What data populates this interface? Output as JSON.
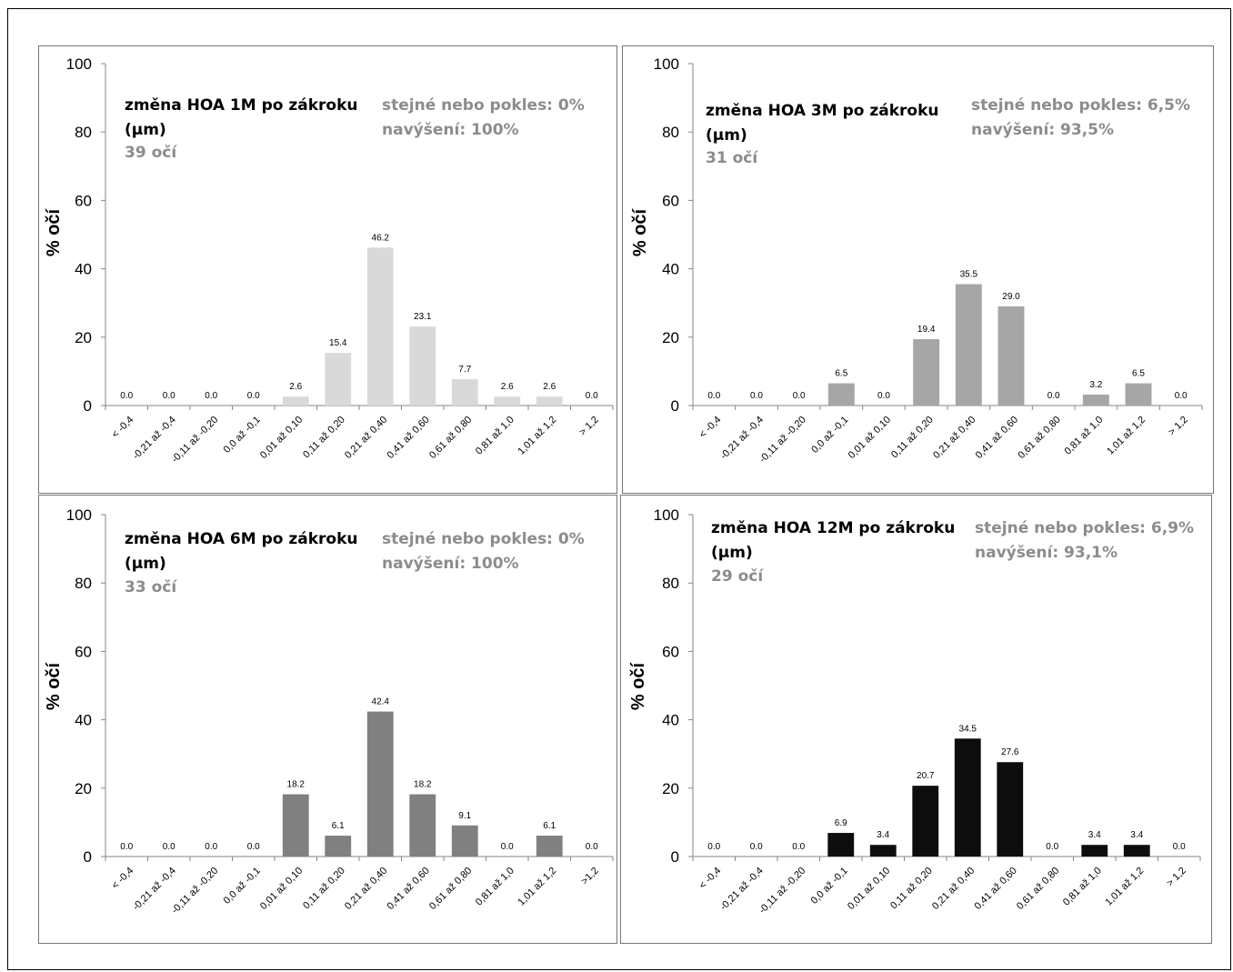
{
  "chart_data": [
    {
      "type": "bar",
      "title_lines": [
        "změna HOA 1M po zákroku",
        "(µm)"
      ],
      "eyes_label": "39 očí",
      "stats_lines": [
        "stejné nebo pokles: 0%",
        "navýšení: 100%"
      ],
      "ylabel": "% očí",
      "ylim": [
        0,
        100
      ],
      "yticks": [
        "0",
        "20",
        "40",
        "60",
        "80",
        "100"
      ],
      "categories": [
        "< -0,4",
        "-0,21 až -0,4",
        "-0,11 až -0,20",
        "0,0 až -0,1",
        "0,01 až 0,10",
        "0,11 až 0,20",
        "0,21 až 0,40",
        "0,41 až 0,60",
        "0,61 až 0,80",
        "0,81 až 1,0",
        "1,01 až 1,2",
        "> 1,2"
      ],
      "values": [
        0.0,
        0.0,
        0.0,
        0.0,
        2.6,
        15.4,
        46.2,
        23.1,
        7.7,
        2.6,
        2.6,
        0.0
      ],
      "data_labels": [
        "0.0",
        "0.0",
        "0.0",
        "0.0",
        "2.6",
        "15.4",
        "46.2",
        "23.1",
        "7.7",
        "2.6",
        "2.6",
        "0.0"
      ],
      "bar_color": "#d9d9d9",
      "grid": false
    },
    {
      "type": "bar",
      "title_lines": [
        "změna HOA 3M po zákroku",
        "(µm)"
      ],
      "eyes_label": "31 očí",
      "stats_lines": [
        "stejné nebo pokles: 6,5%",
        "navýšení: 93,5%"
      ],
      "ylabel": "% očí",
      "ylim": [
        0,
        100
      ],
      "yticks": [
        "0",
        "20",
        "40",
        "60",
        "80",
        "100"
      ],
      "categories": [
        "< -0,4",
        "-0,21 až -0,4",
        "-0,11 až -0,20",
        "0,0 až -0,1",
        "0,01 až 0,10",
        "0,11 až 0,20",
        "0,21 až 0,40",
        "0,41 až 0,60",
        "0,61 až 0,80",
        "0,81 až 1,0",
        "1,01 až 1,2",
        "> 1,2"
      ],
      "values": [
        0.0,
        0.0,
        0.0,
        6.5,
        0.0,
        19.4,
        35.5,
        29.0,
        0.0,
        3.2,
        6.5,
        0.0
      ],
      "data_labels": [
        "0.0",
        "0.0",
        "0.0",
        "6.5",
        "0.0",
        "19.4",
        "35.5",
        "29.0",
        "0.0",
        "3.2",
        "6.5",
        "0.0"
      ],
      "bar_color": "#a6a6a6",
      "grid": false
    },
    {
      "type": "bar",
      "title_lines": [
        "změna HOA 6M po zákroku",
        "(µm)"
      ],
      "eyes_label": "33 očí",
      "stats_lines": [
        "stejné nebo pokles: 0%",
        "navýšení: 100%"
      ],
      "ylabel": "% očí",
      "ylim": [
        0,
        100
      ],
      "yticks": [
        "0",
        "20",
        "40",
        "60",
        "80",
        "100"
      ],
      "categories": [
        "< -0,4",
        "-0,21 až -0,4",
        "-0,11 až -0,20",
        "0,0 až -0,1",
        "0,01 až 0,10",
        "0,11 až 0,20",
        "0,21 až 0,40",
        "0,41 až 0,60",
        "0,61 až 0,80",
        "0,81 až 1,0",
        "1,01 až 1,2",
        ">1,2"
      ],
      "values": [
        0.0,
        0.0,
        0.0,
        0.0,
        18.2,
        6.1,
        42.4,
        18.2,
        9.1,
        0.0,
        6.1,
        0.0
      ],
      "data_labels": [
        "0.0",
        "0.0",
        "0.0",
        "0.0",
        "18.2",
        "6.1",
        "42.4",
        "18.2",
        "9.1",
        "0.0",
        "6.1",
        "0.0"
      ],
      "bar_color": "#808080",
      "grid": false
    },
    {
      "type": "bar",
      "title_lines": [
        "změna HOA 12M po zákroku",
        "(µm)"
      ],
      "eyes_label": "29 očí",
      "stats_lines": [
        "stejné nebo pokles: 6,9%",
        "navýšení: 93,1%"
      ],
      "ylabel": "% očí",
      "ylim": [
        0,
        100
      ],
      "yticks": [
        "0",
        "20",
        "40",
        "60",
        "80",
        "100"
      ],
      "categories": [
        "< -0,4",
        "-0,21 až -0,4",
        "-0,11 až -0,20",
        "0,0 až -0,1",
        "0,01 až 0,10",
        "0,11 až 0,20",
        "0,21 až 0,40",
        "0,41 až 0,60",
        "0,61 až 0,80",
        "0,81 až 1,0",
        "1,01 až 1,2",
        "> 1,2"
      ],
      "values": [
        0.0,
        0.0,
        0.0,
        6.9,
        3.4,
        20.7,
        34.5,
        27.6,
        0.0,
        3.4,
        3.4,
        0.0
      ],
      "data_labels": [
        "0.0",
        "0.0",
        "0.0",
        "6.9",
        "3.4",
        "20.7",
        "34.5",
        "27.6",
        "0.0",
        "3.4",
        "3.4",
        "0.0"
      ],
      "bar_color": "#0d0d0d",
      "grid": false
    }
  ],
  "colors": {
    "stats_text": "#8c8c8c",
    "title_text": "#000000",
    "axis": "#868686"
  }
}
